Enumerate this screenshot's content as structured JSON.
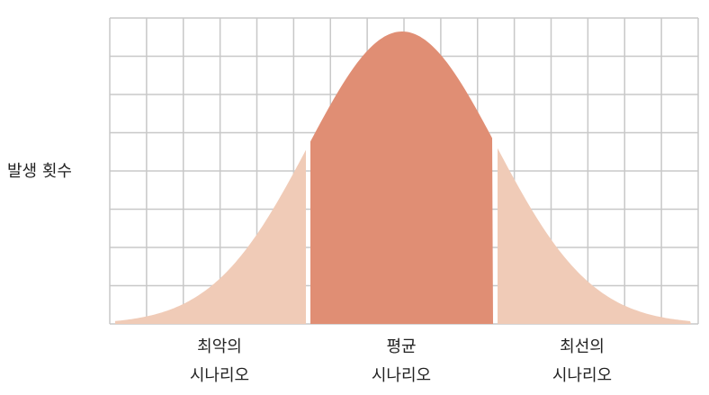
{
  "chart_data": {
    "type": "area",
    "ylabel": "발생 횟수",
    "categories": [
      {
        "line1": "최악의",
        "line2": "시나리오"
      },
      {
        "line1": "평균",
        "line2": "시나리오"
      },
      {
        "line1": "최선의",
        "line2": "시나리오"
      }
    ],
    "colors": {
      "tails": "#f0cbb7",
      "center": "#e08e74",
      "grid": "#c8c8c8",
      "text": "#222222"
    },
    "grid": true
  }
}
